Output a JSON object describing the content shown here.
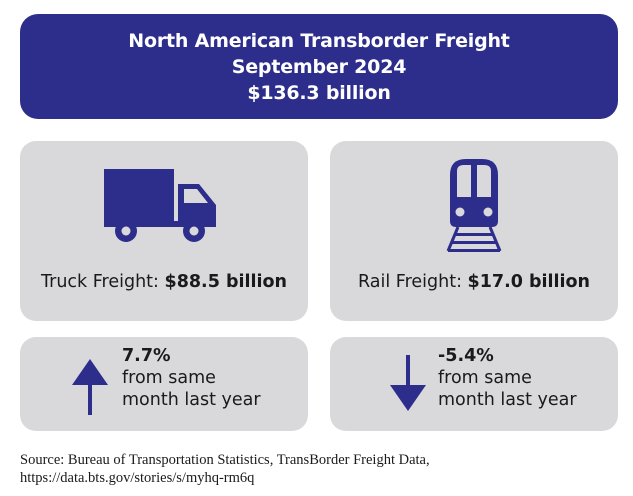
{
  "header": {
    "title": "North American Transborder Freight",
    "period": "September 2024",
    "total": "$136.3 billion"
  },
  "truck": {
    "icon": "truck-icon",
    "label": "Truck Freight: ",
    "value": "$88.5 billion",
    "change": "7.7%",
    "change_direction": "up",
    "change_desc_line1": "from same",
    "change_desc_line2": "month last year"
  },
  "rail": {
    "icon": "train-icon",
    "label": "Rail Freight: ",
    "value": "$17.0 billion",
    "change": "-5.4%",
    "change_direction": "down",
    "change_desc_line1": "from same",
    "change_desc_line2": "month last year"
  },
  "source": {
    "line1": "Source: Bureau of Transportation Statistics, TransBorder Freight Data,",
    "line2": "https://data.bts.gov/stories/s/myhq-rm6q"
  },
  "colors": {
    "brand": "#2d2d8c",
    "card": "#d9d9db",
    "text": "#1a1a1a"
  }
}
